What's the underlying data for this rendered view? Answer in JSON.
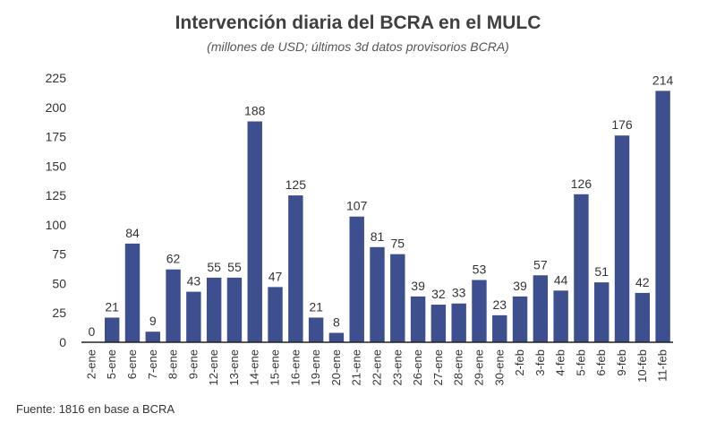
{
  "chart_data": {
    "type": "bar",
    "title": "Intervención diaria del BCRA en el MULC",
    "subtitle": "(millones de USD; últimos 3d datos provisorios BCRA)",
    "categories": [
      "2-ene",
      "5-ene",
      "6-ene",
      "7-ene",
      "8-ene",
      "9-ene",
      "12-ene",
      "13-ene",
      "14-ene",
      "15-ene",
      "16-ene",
      "19-ene",
      "20-ene",
      "21-ene",
      "22-ene",
      "23-ene",
      "26-ene",
      "27-ene",
      "28-ene",
      "29-ene",
      "30-ene",
      "2-feb",
      "3-feb",
      "4-feb",
      "5-feb",
      "6-feb",
      "9-feb",
      "10-feb",
      "11-feb"
    ],
    "values": [
      0,
      21,
      84,
      9,
      62,
      43,
      55,
      55,
      188,
      47,
      125,
      21,
      8,
      107,
      81,
      75,
      39,
      32,
      33,
      53,
      23,
      39,
      57,
      44,
      126,
      51,
      176,
      42,
      214
    ],
    "yticks": [
      0,
      25,
      50,
      75,
      100,
      125,
      150,
      175,
      200,
      225
    ],
    "ylim": [
      0,
      225
    ],
    "bar_color": "#3d4f8f",
    "grid": false,
    "legend": false
  },
  "source": "Fuente: 1816 en base a BCRA"
}
